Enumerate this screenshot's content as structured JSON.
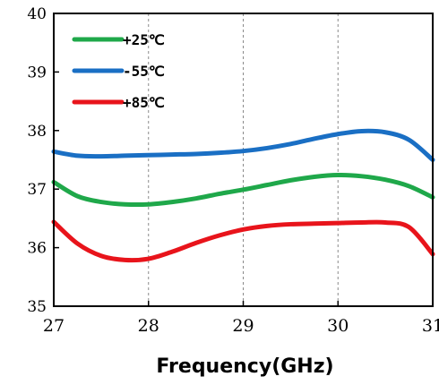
{
  "chart_data": {
    "type": "line",
    "title": "",
    "xlabel": "Frequency(GHz)",
    "ylabel": "",
    "xlim": [
      27,
      31
    ],
    "ylim": [
      35,
      40
    ],
    "xticks": [
      27,
      28,
      29,
      30,
      31
    ],
    "yticks": [
      35,
      36,
      37,
      38,
      39,
      40
    ],
    "xtick_labels": [
      "27",
      "28",
      "29",
      "30",
      "31"
    ],
    "ytick_labels": [
      "35",
      "36",
      "37",
      "38",
      "39",
      "40"
    ],
    "grid": "vertical-dashed",
    "legend_position": "top-left",
    "series": [
      {
        "name": "+25℃",
        "color": "#1fa84a",
        "x": [
          27.0,
          27.25,
          27.5,
          27.75,
          28.0,
          28.25,
          28.5,
          28.75,
          29.0,
          29.25,
          29.5,
          29.75,
          30.0,
          30.25,
          30.5,
          30.75,
          31.0
        ],
        "y": [
          37.12,
          36.88,
          36.78,
          36.74,
          36.74,
          36.78,
          36.84,
          36.92,
          36.99,
          37.07,
          37.15,
          37.21,
          37.24,
          37.22,
          37.16,
          37.05,
          36.86
        ]
      },
      {
        "name": "-55℃",
        "color": "#1a6fc4",
        "x": [
          27.0,
          27.25,
          27.5,
          27.75,
          28.0,
          28.25,
          28.5,
          28.75,
          29.0,
          29.25,
          29.5,
          29.75,
          30.0,
          30.25,
          30.5,
          30.75,
          31.0
        ],
        "y": [
          37.64,
          37.57,
          37.56,
          37.57,
          37.58,
          37.59,
          37.6,
          37.62,
          37.65,
          37.7,
          37.77,
          37.86,
          37.94,
          37.99,
          37.97,
          37.84,
          37.5
        ]
      },
      {
        "name": "+85℃",
        "color": "#e8141b",
        "x": [
          27.0,
          27.25,
          27.5,
          27.75,
          28.0,
          28.25,
          28.5,
          28.75,
          29.0,
          29.25,
          29.5,
          29.75,
          30.0,
          30.25,
          30.5,
          30.75,
          31.0
        ],
        "y": [
          36.44,
          36.07,
          35.86,
          35.79,
          35.81,
          35.93,
          36.08,
          36.21,
          36.31,
          36.37,
          36.4,
          36.41,
          36.42,
          36.43,
          36.43,
          36.35,
          35.89
        ]
      }
    ]
  }
}
